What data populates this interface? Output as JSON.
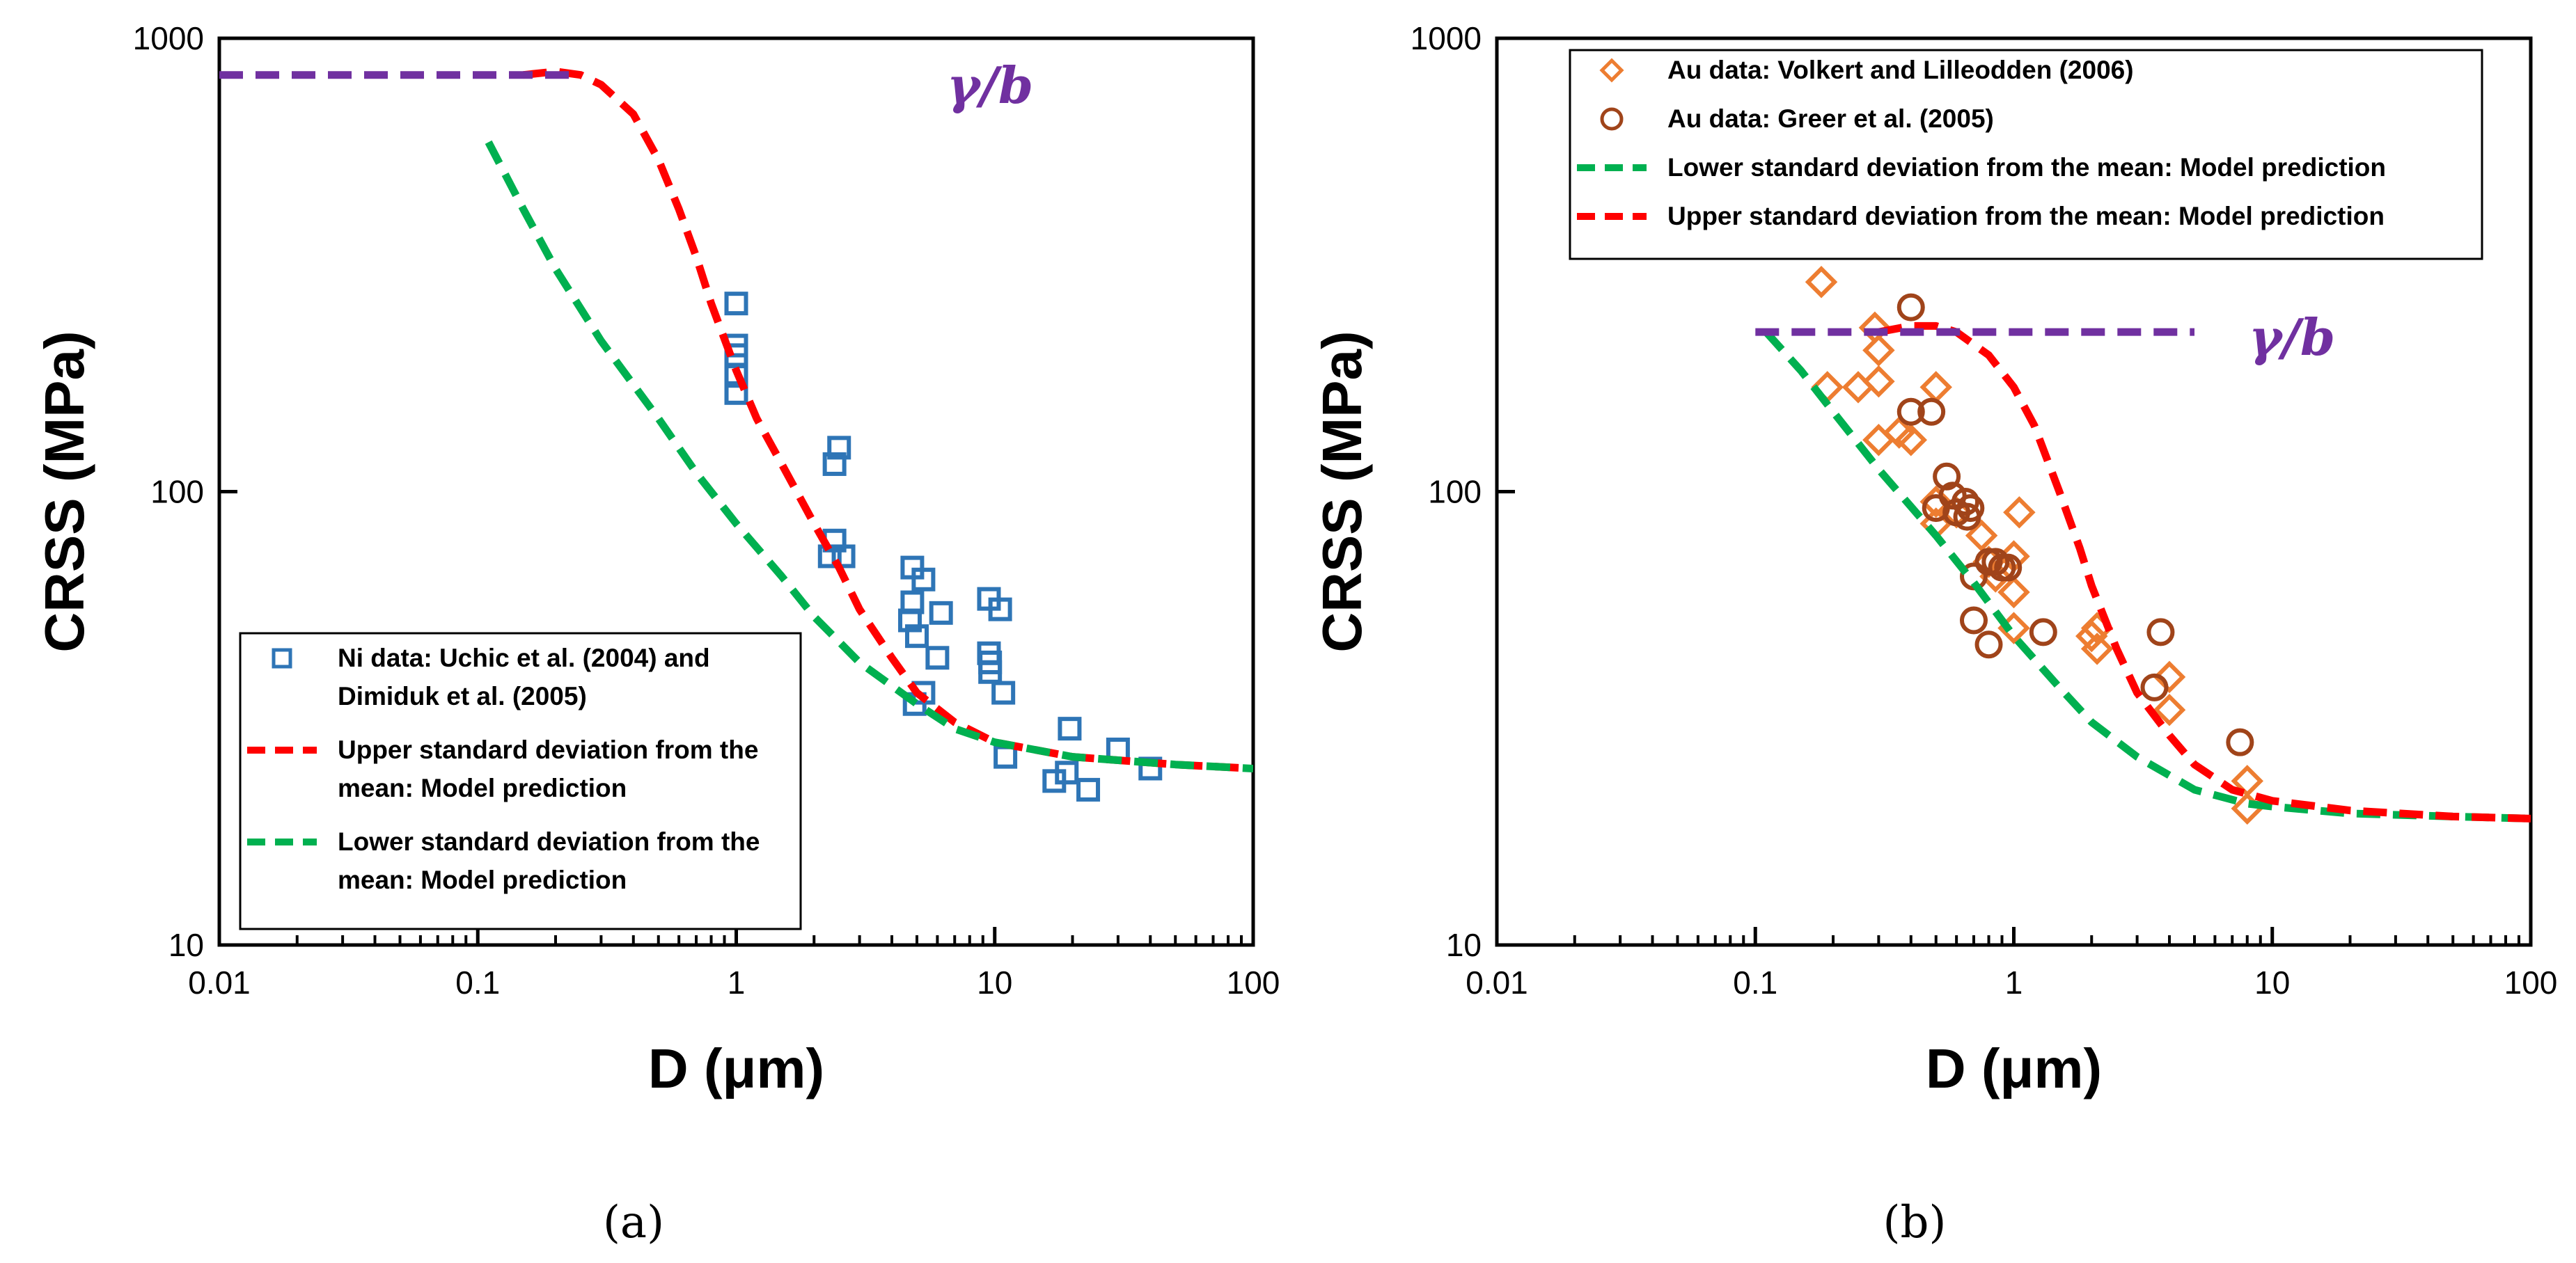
{
  "colors": {
    "ni_marker": "#2E75B6",
    "volkert_marker": "#ED7D31",
    "greer_marker": "#A0441A",
    "upper_curve": "#FF0000",
    "lower_curve": "#00B050",
    "gamma_line": "#7030A0",
    "axis": "#000000"
  },
  "chart_data": [
    {
      "panel": "(a)",
      "type": "scatter",
      "xscale": "log",
      "yscale": "log",
      "xlabel": "D (μm)",
      "ylabel": "CRSS (MPa)",
      "xlim": [
        0.01,
        100
      ],
      "ylim": [
        10,
        1000
      ],
      "x_tick_labels": [
        "0.01",
        "0.1",
        "1",
        "10",
        "100"
      ],
      "y_tick_labels": [
        "10",
        "100",
        "1000"
      ],
      "gamma_label": "γ/b",
      "legend_position": "lower-left",
      "series": [
        {
          "name": "Ni data: Uchic et al. (2004) and Dimiduk et al. (2005)",
          "legend_lines": [
            "Ni data: Uchic et al. (2004) and",
            "Dimiduk et al. (2005)"
          ],
          "kind": "marker",
          "marker": "square",
          "points": [
            [
              1.0,
              260
            ],
            [
              1.0,
              210
            ],
            [
              1.0,
              200
            ],
            [
              1.0,
              180
            ],
            [
              1.0,
              165
            ],
            [
              2.5,
              125
            ],
            [
              2.4,
              115
            ],
            [
              2.4,
              78
            ],
            [
              2.6,
              72
            ],
            [
              2.3,
              72
            ],
            [
              4.8,
              68
            ],
            [
              5.3,
              64
            ],
            [
              4.8,
              57
            ],
            [
              6.2,
              54
            ],
            [
              4.7,
              52
            ],
            [
              5.0,
              48
            ],
            [
              6.0,
              43
            ],
            [
              9.5,
              58
            ],
            [
              10.5,
              55
            ],
            [
              9.5,
              44
            ],
            [
              9.6,
              42
            ],
            [
              9.6,
              40
            ],
            [
              10.8,
              36
            ],
            [
              5.3,
              36
            ],
            [
              4.9,
              34
            ],
            [
              11.0,
              26
            ],
            [
              19.5,
              30
            ],
            [
              30.0,
              27
            ],
            [
              17.0,
              23
            ],
            [
              19.0,
              24
            ],
            [
              23.0,
              22
            ],
            [
              40.0,
              24.5
            ]
          ]
        },
        {
          "name": "Upper standard deviation from the mean: Model prediction",
          "legend_lines": [
            "Upper standard deviation from the",
            "mean: Model prediction"
          ],
          "kind": "dashed-line",
          "points": [
            [
              0.15,
              830
            ],
            [
              0.2,
              845
            ],
            [
              0.25,
              830
            ],
            [
              0.3,
              790
            ],
            [
              0.4,
              680
            ],
            [
              0.5,
              540
            ],
            [
              0.6,
              420
            ],
            [
              0.7,
              330
            ],
            [
              0.8,
              260
            ],
            [
              1.0,
              185
            ],
            [
              1.2,
              145
            ],
            [
              1.5,
              115
            ],
            [
              2.0,
              85
            ],
            [
              2.5,
              68
            ],
            [
              3.0,
              55
            ],
            [
              4.0,
              43
            ],
            [
              5.0,
              36
            ],
            [
              7.0,
              31
            ],
            [
              10.0,
              28
            ],
            [
              20.0,
              26
            ],
            [
              50.0,
              25
            ],
            [
              100.0,
              24.5
            ]
          ]
        },
        {
          "name": "Lower standard deviation from the mean: Model prediction",
          "legend_lines": [
            "Lower standard deviation from the",
            "mean: Model prediction"
          ],
          "kind": "dashed-line",
          "points": [
            [
              0.11,
              590
            ],
            [
              0.15,
              420
            ],
            [
              0.2,
              310
            ],
            [
              0.3,
              215
            ],
            [
              0.5,
              145
            ],
            [
              0.7,
              110
            ],
            [
              1.0,
              85
            ],
            [
              1.5,
              65
            ],
            [
              2.0,
              53
            ],
            [
              3.0,
              42
            ],
            [
              5.0,
              34
            ],
            [
              7.0,
              30
            ],
            [
              10.0,
              28
            ],
            [
              20.0,
              26
            ],
            [
              50.0,
              25
            ],
            [
              100.0,
              24.5
            ]
          ]
        },
        {
          "name": "γ/b",
          "kind": "gamma-line",
          "points": [
            [
              0.01,
              830
            ],
            [
              0.25,
              830
            ]
          ]
        }
      ]
    },
    {
      "panel": "(b)",
      "type": "scatter",
      "xscale": "log",
      "yscale": "log",
      "xlabel": "D (μm)",
      "ylabel": "CRSS (MPa)",
      "xlim": [
        0.01,
        100
      ],
      "ylim": [
        10,
        1000
      ],
      "x_tick_labels": [
        "0.01",
        "0.1",
        "1",
        "10",
        "100"
      ],
      "y_tick_labels": [
        "10",
        "100",
        "1000"
      ],
      "gamma_label": "γ/b",
      "legend_position": "top-left",
      "series": [
        {
          "name": "Au data: Volkert and Lilleodden (2006)",
          "legend_lines": [
            "Au data: Volkert and Lilleodden (2006)"
          ],
          "kind": "marker",
          "marker": "diamond",
          "points": [
            [
              0.18,
              290
            ],
            [
              0.19,
              170
            ],
            [
              0.25,
              170
            ],
            [
              0.29,
              230
            ],
            [
              0.3,
              205
            ],
            [
              0.3,
              175
            ],
            [
              0.3,
              130
            ],
            [
              0.36,
              135
            ],
            [
              0.4,
              130
            ],
            [
              0.5,
              170
            ],
            [
              0.5,
              95
            ],
            [
              0.5,
              85
            ],
            [
              0.6,
              90
            ],
            [
              0.75,
              80
            ],
            [
              0.8,
              70
            ],
            [
              0.85,
              65
            ],
            [
              1.0,
              72
            ],
            [
              1.0,
              60
            ],
            [
              1.05,
              90
            ],
            [
              1.0,
              50
            ],
            [
              2.0,
              48
            ],
            [
              2.1,
              50
            ],
            [
              2.1,
              45
            ],
            [
              4.0,
              39
            ],
            [
              4.0,
              33
            ],
            [
              8.0,
              23
            ],
            [
              8.0,
              20
            ]
          ]
        },
        {
          "name": "Au data: Greer et al. (2005)",
          "legend_lines": [
            "Au data: Greer et al. (2005)"
          ],
          "kind": "marker",
          "marker": "circle",
          "points": [
            [
              0.4,
              255
            ],
            [
              0.4,
              150
            ],
            [
              0.48,
              150
            ],
            [
              0.55,
              108
            ],
            [
              0.58,
              98
            ],
            [
              0.5,
              92
            ],
            [
              0.6,
              90
            ],
            [
              0.65,
              95
            ],
            [
              0.66,
              88
            ],
            [
              0.68,
              92
            ],
            [
              0.7,
              65
            ],
            [
              0.7,
              52
            ],
            [
              0.8,
              70
            ],
            [
              0.85,
              70
            ],
            [
              0.9,
              68
            ],
            [
              0.95,
              68
            ],
            [
              0.8,
              46
            ],
            [
              1.3,
              49
            ],
            [
              3.7,
              49
            ],
            [
              3.5,
              37
            ],
            [
              7.5,
              28
            ]
          ]
        },
        {
          "name": "Lower standard deviation from the mean: Model prediction",
          "legend_lines": [
            "Lower standard deviation from the mean: Model prediction"
          ],
          "kind": "dashed-line",
          "points": [
            [
              0.11,
              225
            ],
            [
              0.15,
              185
            ],
            [
              0.2,
              150
            ],
            [
              0.3,
              112
            ],
            [
              0.5,
              80
            ],
            [
              0.7,
              63
            ],
            [
              1.0,
              48
            ],
            [
              1.5,
              37
            ],
            [
              2.0,
              31
            ],
            [
              3.0,
              26
            ],
            [
              5.0,
              22
            ],
            [
              8.0,
              20.5
            ],
            [
              10.0,
              20.2
            ],
            [
              20.0,
              19.5
            ],
            [
              50.0,
              19.2
            ],
            [
              100.0,
              19
            ]
          ]
        },
        {
          "name": "Upper standard deviation from the mean: Model prediction",
          "legend_lines": [
            "Upper standard deviation from the mean: Model prediction"
          ],
          "kind": "dashed-line",
          "points": [
            [
              0.3,
              225
            ],
            [
              0.4,
              232
            ],
            [
              0.5,
              232
            ],
            [
              0.6,
              225
            ],
            [
              0.8,
              200
            ],
            [
              1.0,
              170
            ],
            [
              1.2,
              140
            ],
            [
              1.5,
              100
            ],
            [
              1.8,
              75
            ],
            [
              2.0,
              62
            ],
            [
              2.5,
              45
            ],
            [
              3.0,
              36
            ],
            [
              4.0,
              29
            ],
            [
              5.0,
              25
            ],
            [
              7.0,
              22
            ],
            [
              10.0,
              20.8
            ],
            [
              20.0,
              19.8
            ],
            [
              50.0,
              19.2
            ],
            [
              100.0,
              19
            ]
          ]
        },
        {
          "name": "γ/b",
          "kind": "gamma-line",
          "points": [
            [
              0.1,
              225
            ],
            [
              5.0,
              225
            ]
          ]
        }
      ]
    }
  ]
}
